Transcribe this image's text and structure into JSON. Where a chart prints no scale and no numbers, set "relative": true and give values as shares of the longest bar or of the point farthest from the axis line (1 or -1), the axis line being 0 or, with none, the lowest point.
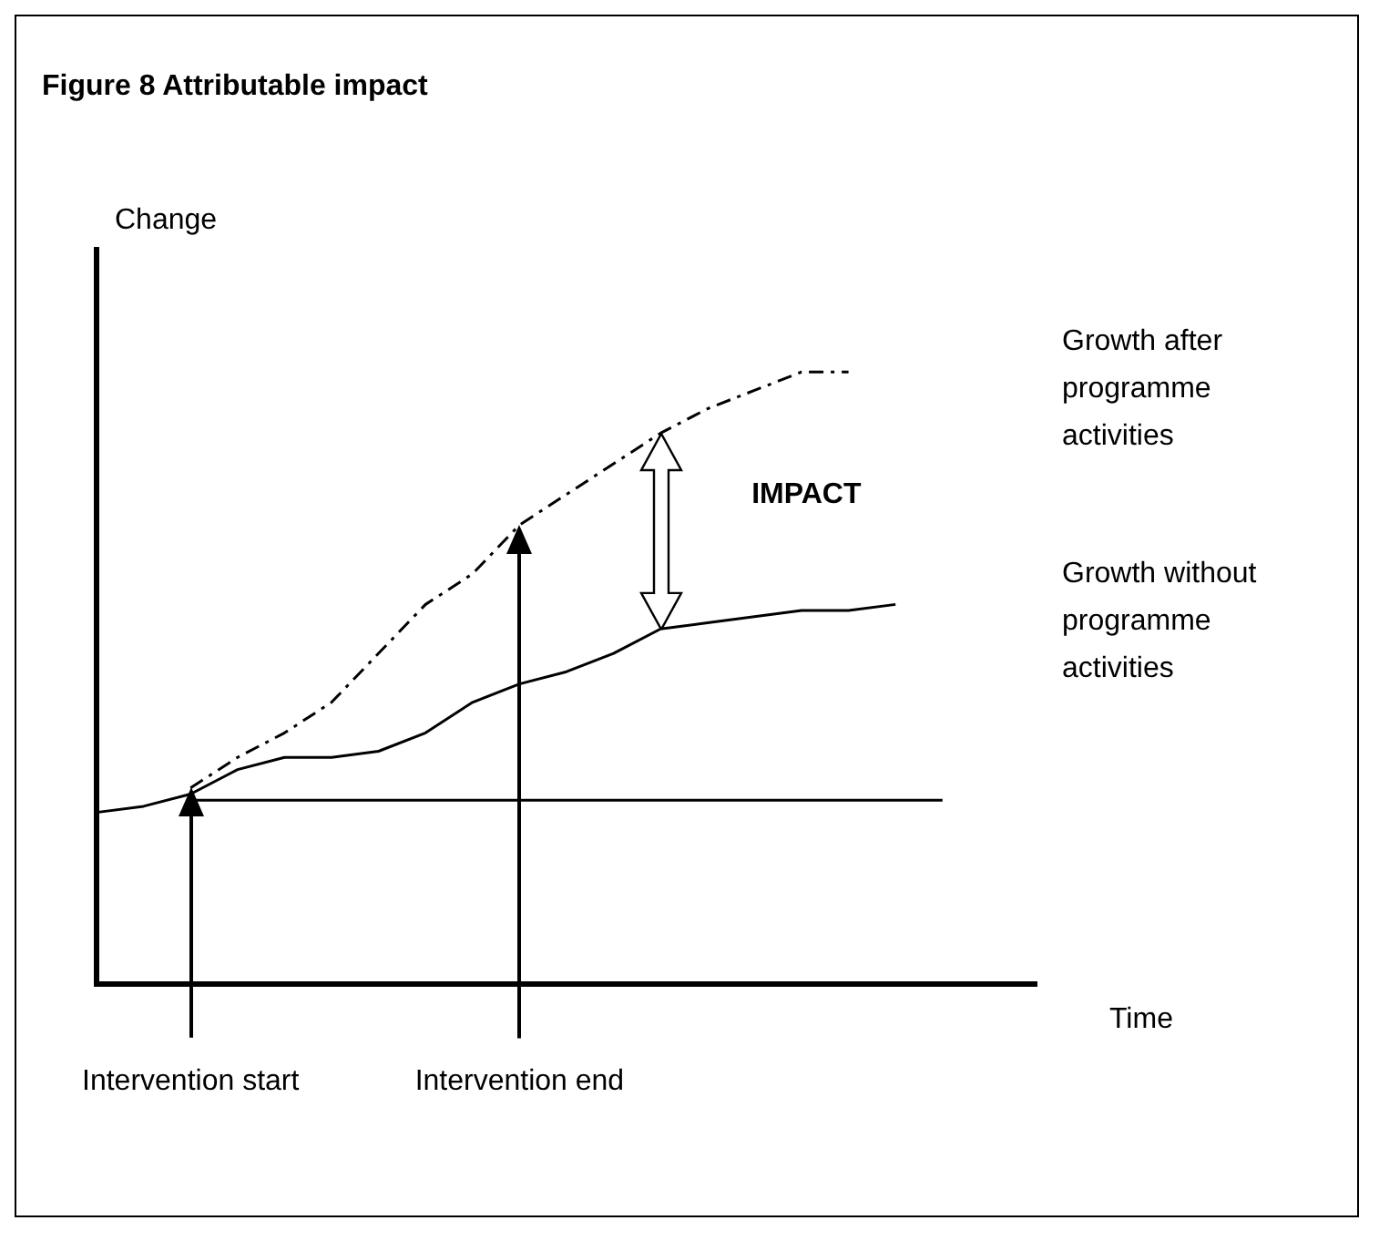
{
  "chart_data": {
    "type": "line",
    "title": "Figure 8 Attributable impact",
    "xlabel": "Time",
    "ylabel": "Change",
    "relative": true,
    "tick_labels": "x",
    "grid": false,
    "legend": false,
    "marker": "none",
    "categories": [
      null,
      null,
      "Intervention start",
      null,
      null,
      null,
      null,
      null,
      null,
      "Intervention end",
      null,
      null,
      null,
      null,
      null,
      null,
      null,
      null,
      null,
      null,
      null
    ],
    "series": [
      {
        "name": "Growth after programme activities",
        "color": "#000000",
        "line_style": "dashed",
        "values": [
          null,
          null,
          0.32,
          0.37,
          0.41,
          0.46,
          0.54,
          0.62,
          0.67,
          0.75,
          0.8,
          0.85,
          0.9,
          0.94,
          0.97,
          1.0,
          1.0,
          null,
          null,
          null,
          null
        ]
      },
      {
        "name": "Growth without programme activities",
        "color": "#000000",
        "line_style": "solid",
        "values": [
          0.28,
          0.29,
          0.31,
          0.35,
          0.37,
          0.37,
          0.38,
          0.41,
          0.46,
          0.49,
          0.51,
          0.54,
          0.58,
          0.59,
          0.6,
          0.61,
          0.61,
          0.62,
          null,
          null,
          null
        ]
      },
      {
        "color": "#000000",
        "line_style": "solid",
        "values": [
          null,
          null,
          0.3,
          0.3,
          0.3,
          0.3,
          0.3,
          0.3,
          0.3,
          0.3,
          0.3,
          0.3,
          0.3,
          0.3,
          0.3,
          0.3,
          0.3,
          0.3,
          0.3,
          null,
          null
        ]
      }
    ],
    "annotations": [
      "IMPACT"
    ]
  }
}
